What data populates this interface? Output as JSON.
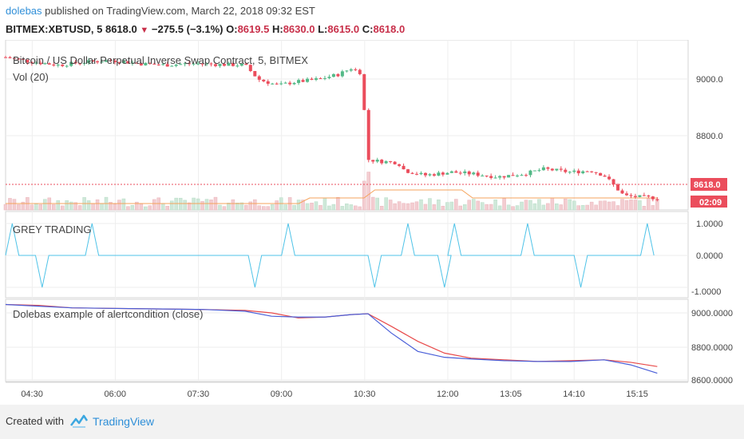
{
  "header": {
    "author": "dolebas",
    "published_text": " published on TradingView.com, March 22, 2018 09:32 EST",
    "symbol": "BITMEX:XBTUSD, 5",
    "last_price": "8618.0",
    "change": "−275.5 (−3.1%)",
    "open_label": "O:",
    "open": "8619.5",
    "high_label": "H:",
    "high": "8630.0",
    "low_label": "L:",
    "low": "8615.0",
    "close_label": "C:",
    "close": "8618.0"
  },
  "main_pane": {
    "title": "Bitcoin / US Dollar Perpetual Inverse Swap Contract, 5, BITMEX",
    "volume_label": "Vol (20)",
    "axis_labels": [
      "9000.0",
      "8800.0"
    ],
    "price_badge": "8618.0",
    "timer_badge": "02:09"
  },
  "grey_pane": {
    "title": "GREY TRADING",
    "axis_labels": [
      "1.0000",
      "0.0000",
      "-1.0000"
    ]
  },
  "alert_pane": {
    "title": "Dolebas example of alertcondition (close)",
    "axis_labels": [
      "9000.0000",
      "8800.0000",
      "8600.0000"
    ]
  },
  "time_axis": [
    "04:30",
    "06:00",
    "07:30",
    "09:00",
    "10:30",
    "12:00",
    "13:05",
    "14:10",
    "15:15"
  ],
  "footer": {
    "created_with": "Created with",
    "brand": "TradingView"
  },
  "colors": {
    "up": "#53b987",
    "down": "#eb4d5c",
    "vol_up": "#cfe8d9",
    "vol_down": "#f3cdd1",
    "vol_ma": "#f5a35c",
    "signal": "#4fc3e8",
    "ma_red": "#e84a4a",
    "ma_blue": "#4a5fd8",
    "accent": "#2f8fd8"
  },
  "chart_data": [
    {
      "type": "candlestick",
      "title": "Bitcoin / US Dollar Perpetual Inverse Swap Contract, 5, BITMEX",
      "ylabel": "",
      "ylim": [
        8580,
        9120
      ],
      "x": [
        "04:30",
        "06:00",
        "07:30",
        "09:00",
        "10:30",
        "12:00",
        "13:05",
        "14:10",
        "15:15"
      ],
      "close_path": [
        [
          0,
          9065
        ],
        [
          0.04,
          9050
        ],
        [
          0.08,
          9040
        ],
        [
          0.12,
          9050
        ],
        [
          0.16,
          9055
        ],
        [
          0.2,
          9045
        ],
        [
          0.24,
          9040
        ],
        [
          0.28,
          9045
        ],
        [
          0.32,
          9042
        ],
        [
          0.36,
          9040
        ],
        [
          0.38,
          8995
        ],
        [
          0.41,
          8975
        ],
        [
          0.43,
          8985
        ],
        [
          0.47,
          8995
        ],
        [
          0.5,
          9010
        ],
        [
          0.52,
          9030
        ],
        [
          0.535,
          9015
        ],
        [
          0.545,
          8740
        ],
        [
          0.56,
          8735
        ],
        [
          0.59,
          8730
        ],
        [
          0.6,
          8705
        ],
        [
          0.63,
          8690
        ],
        [
          0.67,
          8700
        ],
        [
          0.7,
          8695
        ],
        [
          0.74,
          8685
        ],
        [
          0.78,
          8695
        ],
        [
          0.81,
          8710
        ],
        [
          0.85,
          8700
        ],
        [
          0.88,
          8705
        ],
        [
          0.9,
          8690
        ],
        [
          0.93,
          8625
        ],
        [
          0.96,
          8620
        ],
        [
          0.98,
          8618
        ]
      ]
    },
    {
      "type": "line",
      "title": "GREY TRADING",
      "ylim": [
        -1.2,
        1.2
      ],
      "series": [
        {
          "values": [
            [
              0,
              0
            ],
            [
              0.01,
              1
            ],
            [
              0.02,
              0
            ],
            [
              0.045,
              0
            ],
            [
              0.055,
              -1
            ],
            [
              0.065,
              0
            ],
            [
              0.12,
              0
            ],
            [
              0.13,
              1
            ],
            [
              0.14,
              0
            ],
            [
              0.365,
              0
            ],
            [
              0.375,
              -1
            ],
            [
              0.385,
              0
            ],
            [
              0.415,
              0
            ],
            [
              0.425,
              1
            ],
            [
              0.435,
              0
            ],
            [
              0.545,
              0
            ],
            [
              0.555,
              -1
            ],
            [
              0.565,
              0
            ],
            [
              0.595,
              0
            ],
            [
              0.605,
              1
            ],
            [
              0.615,
              0
            ],
            [
              0.65,
              0
            ],
            [
              0.66,
              -1
            ],
            [
              0.67,
              0
            ],
            [
              0.665,
              0
            ],
            [
              0.675,
              1
            ],
            [
              0.685,
              0
            ],
            [
              0.775,
              0
            ],
            [
              0.785,
              1
            ],
            [
              0.795,
              0
            ],
            [
              0.855,
              0
            ],
            [
              0.865,
              -1
            ],
            [
              0.875,
              0
            ],
            [
              0.955,
              0
            ],
            [
              0.965,
              1
            ],
            [
              0.975,
              0
            ]
          ]
        }
      ]
    },
    {
      "type": "line",
      "title": "Dolebas example of alertcondition (close)",
      "ylim": [
        8580,
        9080
      ],
      "series": [
        {
          "values": [
            [
              0,
              9050
            ],
            [
              0.05,
              9045
            ],
            [
              0.1,
              9030
            ],
            [
              0.2,
              9025
            ],
            [
              0.3,
              9020
            ],
            [
              0.36,
              9015
            ],
            [
              0.4,
              9000
            ],
            [
              0.44,
              8970
            ],
            [
              0.48,
              8975
            ],
            [
              0.52,
              8990
            ],
            [
              0.545,
              8995
            ],
            [
              0.58,
              8920
            ],
            [
              0.62,
              8830
            ],
            [
              0.66,
              8760
            ],
            [
              0.7,
              8730
            ],
            [
              0.75,
              8720
            ],
            [
              0.8,
              8710
            ],
            [
              0.85,
              8715
            ],
            [
              0.9,
              8720
            ],
            [
              0.94,
              8705
            ],
            [
              0.98,
              8680
            ]
          ]
        },
        {
          "values": [
            [
              0,
              9050
            ],
            [
              0.05,
              9040
            ],
            [
              0.1,
              9030
            ],
            [
              0.2,
              9025
            ],
            [
              0.3,
              9020
            ],
            [
              0.36,
              9010
            ],
            [
              0.4,
              8980
            ],
            [
              0.44,
              8975
            ],
            [
              0.48,
              8975
            ],
            [
              0.52,
              8990
            ],
            [
              0.545,
              8995
            ],
            [
              0.58,
              8880
            ],
            [
              0.62,
              8770
            ],
            [
              0.66,
              8735
            ],
            [
              0.7,
              8725
            ],
            [
              0.75,
              8715
            ],
            [
              0.8,
              8710
            ],
            [
              0.85,
              8710
            ],
            [
              0.9,
              8720
            ],
            [
              0.94,
              8690
            ],
            [
              0.98,
              8640
            ]
          ]
        }
      ]
    }
  ]
}
